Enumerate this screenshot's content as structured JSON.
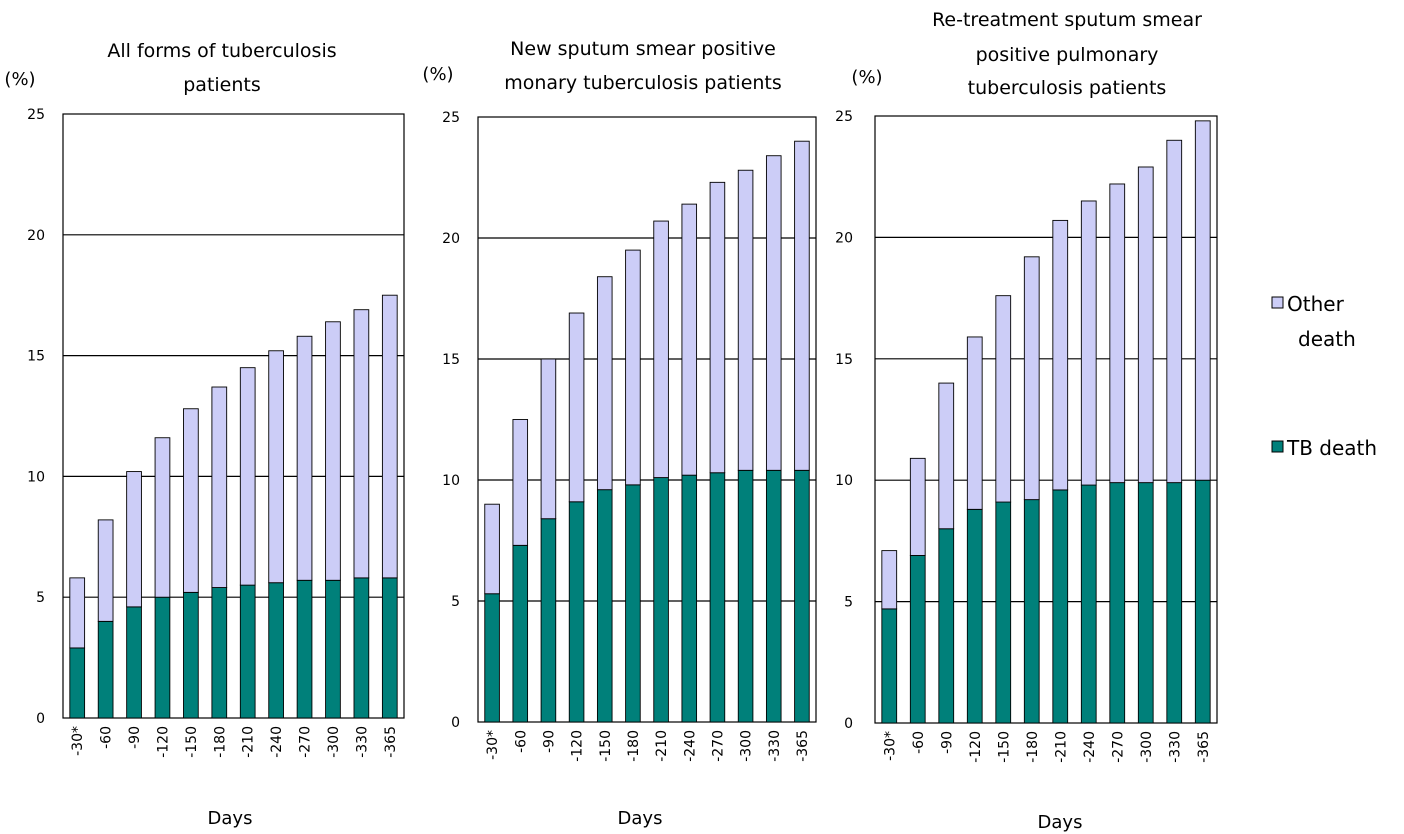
{
  "colors": {
    "tb_death": "#00807a",
    "other_death": "#cccdf7"
  },
  "legend": {
    "position": "right",
    "items": [
      {
        "lines": [
          "Other",
          "death"
        ],
        "color_key": "other_death"
      },
      {
        "lines": [
          "TB death"
        ],
        "color_key": "tb_death"
      }
    ]
  },
  "chart_data": [
    {
      "type": "bar",
      "stacked": true,
      "title_lines": [
        "All forms of tuberculosis",
        "patients"
      ],
      "ylabel": "(%)",
      "xlabel": "Days",
      "ylim": [
        0,
        25
      ],
      "yticks": [
        0,
        5,
        10,
        15,
        20,
        25
      ],
      "grid": true,
      "categories": [
        "-30*",
        "-60",
        "-90",
        "-120",
        "-150",
        "-180",
        "-210",
        "-240",
        "-270",
        "-300",
        "-330",
        "-365"
      ],
      "series": [
        {
          "name": "TB death",
          "color_key": "tb_death",
          "values": [
            2.9,
            4.0,
            4.6,
            5.0,
            5.2,
            5.4,
            5.5,
            5.6,
            5.7,
            5.7,
            5.8,
            5.8
          ]
        },
        {
          "name": "Other death",
          "color_key": "other_death",
          "values": [
            2.9,
            4.2,
            5.6,
            6.6,
            7.6,
            8.3,
            9.0,
            9.6,
            10.1,
            10.7,
            11.1,
            11.7
          ]
        }
      ]
    },
    {
      "type": "bar",
      "stacked": true,
      "title_lines": [
        "New sputum smear positive",
        "monary tuberculosis patients"
      ],
      "ylabel": "(%)",
      "xlabel": "Days",
      "ylim": [
        0,
        25
      ],
      "yticks": [
        0,
        5,
        10,
        15,
        20,
        25
      ],
      "grid": true,
      "categories": [
        "-30*",
        "-60",
        "-90",
        "-120",
        "-150",
        "-180",
        "-210",
        "-240",
        "-270",
        "-300",
        "-330",
        "-365"
      ],
      "series": [
        {
          "name": "TB death",
          "color_key": "tb_death",
          "values": [
            5.3,
            7.3,
            8.4,
            9.1,
            9.6,
            9.8,
            10.1,
            10.2,
            10.3,
            10.4,
            10.4,
            10.4
          ]
        },
        {
          "name": "Other death",
          "color_key": "other_death",
          "values": [
            3.7,
            5.2,
            6.6,
            7.8,
            8.8,
            9.7,
            10.6,
            11.2,
            12.0,
            12.4,
            13.0,
            13.6
          ]
        }
      ]
    },
    {
      "type": "bar",
      "stacked": true,
      "title_lines": [
        "Re-treatment sputum smear",
        "positive pulmonary",
        "tuberculosis patients"
      ],
      "ylabel": "(%)",
      "xlabel": "Days",
      "ylim": [
        0,
        25
      ],
      "yticks": [
        0,
        5,
        10,
        15,
        20,
        25
      ],
      "grid": true,
      "categories": [
        "-30*",
        "-60",
        "-90",
        "-120",
        "-150",
        "-180",
        "-210",
        "-240",
        "-270",
        "-300",
        "-330",
        "-365"
      ],
      "series": [
        {
          "name": "TB death",
          "color_key": "tb_death",
          "values": [
            4.7,
            6.9,
            8.0,
            8.8,
            9.1,
            9.2,
            9.6,
            9.8,
            9.9,
            9.9,
            9.9,
            10.0
          ]
        },
        {
          "name": "Other death",
          "color_key": "other_death",
          "values": [
            2.4,
            4.0,
            6.0,
            7.1,
            8.5,
            10.0,
            11.1,
            11.7,
            12.3,
            13.0,
            14.1,
            14.8
          ]
        }
      ]
    }
  ]
}
